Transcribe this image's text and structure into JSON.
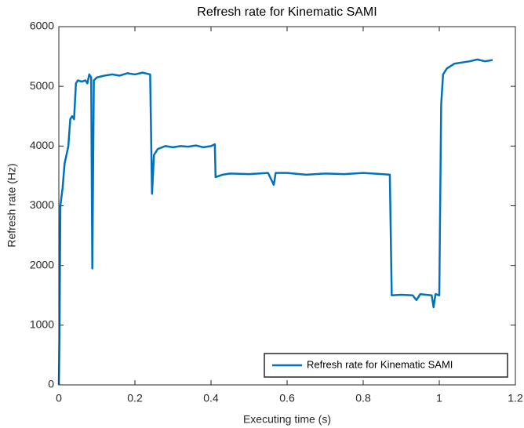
{
  "chart_data": {
    "type": "line",
    "title": "Refresh rate for Kinematic SAMI",
    "xlabel": "Executing time (s)",
    "ylabel": "Refresh rate (Hz)",
    "x": [
      0,
      0.002,
      0.004,
      0.01,
      0.015,
      0.02,
      0.025,
      0.03,
      0.035,
      0.04,
      0.045,
      0.05,
      0.06,
      0.07,
      0.075,
      0.08,
      0.085,
      0.088,
      0.092,
      0.1,
      0.12,
      0.14,
      0.16,
      0.18,
      0.2,
      0.22,
      0.24,
      0.245,
      0.25,
      0.26,
      0.28,
      0.3,
      0.32,
      0.34,
      0.36,
      0.38,
      0.4,
      0.41,
      0.412,
      0.43,
      0.45,
      0.5,
      0.55,
      0.565,
      0.57,
      0.6,
      0.65,
      0.7,
      0.75,
      0.8,
      0.85,
      0.87,
      0.875,
      0.9,
      0.93,
      0.94,
      0.95,
      0.98,
      0.985,
      0.99,
      1.0,
      1.005,
      1.01,
      1.02,
      1.04,
      1.06,
      1.08,
      1.1,
      1.12,
      1.14
    ],
    "series": [
      {
        "name": "Refresh rate for Kinematic SAMI",
        "color": "#0072bd",
        "values": [
          0,
          1000,
          3000,
          3300,
          3700,
          3850,
          4000,
          4450,
          4500,
          4450,
          5050,
          5100,
          5080,
          5100,
          5050,
          5200,
          5150,
          1950,
          5100,
          5150,
          5180,
          5200,
          5180,
          5220,
          5200,
          5230,
          5200,
          3200,
          3850,
          3950,
          4000,
          3980,
          4000,
          3990,
          4010,
          3980,
          4000,
          4030,
          3480,
          3520,
          3540,
          3530,
          3550,
          3350,
          3550,
          3550,
          3520,
          3540,
          3530,
          3550,
          3530,
          3520,
          1500,
          1510,
          1500,
          1420,
          1520,
          1500,
          1300,
          1520,
          1500,
          4700,
          5200,
          5300,
          5380,
          5400,
          5420,
          5450,
          5420,
          5440
        ]
      }
    ],
    "xlim": [
      0,
      1.2
    ],
    "xticks": [
      0,
      0.2,
      0.4,
      0.6,
      0.8,
      1,
      1.2
    ],
    "ylim": [
      0,
      6000
    ],
    "yticks": [
      0,
      1000,
      2000,
      3000,
      4000,
      5000,
      6000
    ],
    "legend": "southeast"
  }
}
